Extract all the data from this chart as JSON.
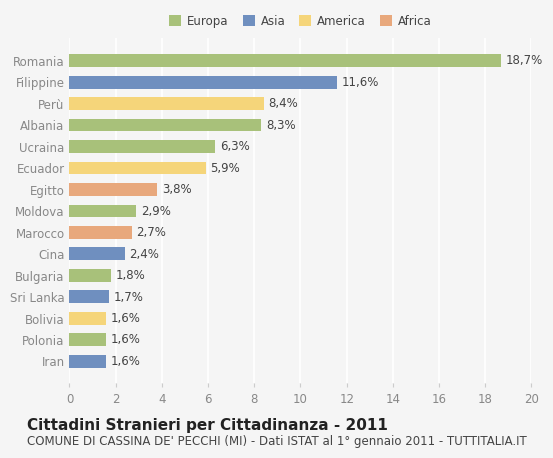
{
  "categories": [
    "Romania",
    "Filippine",
    "Perù",
    "Albania",
    "Ucraina",
    "Ecuador",
    "Egitto",
    "Moldova",
    "Marocco",
    "Cina",
    "Bulgaria",
    "Sri Lanka",
    "Bolivia",
    "Polonia",
    "Iran"
  ],
  "values": [
    18.7,
    11.6,
    8.4,
    8.3,
    6.3,
    5.9,
    3.8,
    2.9,
    2.7,
    2.4,
    1.8,
    1.7,
    1.6,
    1.6,
    1.6
  ],
  "labels": [
    "18,7%",
    "11,6%",
    "8,4%",
    "8,3%",
    "6,3%",
    "5,9%",
    "3,8%",
    "2,9%",
    "2,7%",
    "2,4%",
    "1,8%",
    "1,7%",
    "1,6%",
    "1,6%",
    "1,6%"
  ],
  "continents": [
    "Europa",
    "Asia",
    "America",
    "Europa",
    "Europa",
    "America",
    "Africa",
    "Europa",
    "Africa",
    "Asia",
    "Europa",
    "Asia",
    "America",
    "Europa",
    "Asia"
  ],
  "colors": {
    "Europa": "#a8c17a",
    "Asia": "#6f8fbf",
    "America": "#f5d57a",
    "Africa": "#e8a87c"
  },
  "legend_order": [
    "Europa",
    "Asia",
    "America",
    "Africa"
  ],
  "background_color": "#f5f5f5",
  "title": "Cittadini Stranieri per Cittadinanza - 2011",
  "subtitle": "COMUNE DI CASSINA DE' PECCHI (MI) - Dati ISTAT al 1° gennaio 2011 - TUTTITALIA.IT",
  "xlim": [
    0,
    20
  ],
  "xticks": [
    0,
    2,
    4,
    6,
    8,
    10,
    12,
    14,
    16,
    18,
    20
  ],
  "grid_color": "#ffffff",
  "bar_height": 0.6,
  "label_fontsize": 8.5,
  "title_fontsize": 11,
  "subtitle_fontsize": 8.5,
  "tick_fontsize": 8.5
}
